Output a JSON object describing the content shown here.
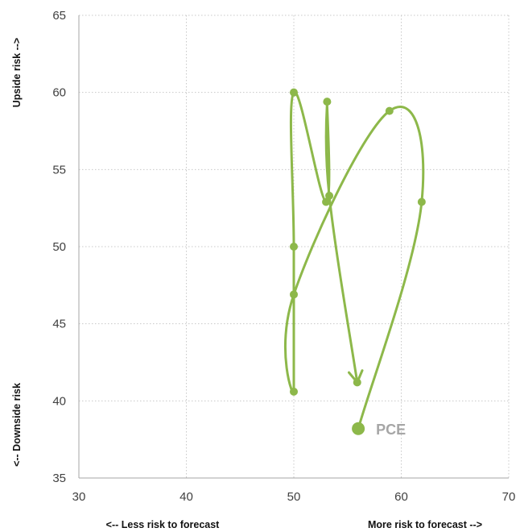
{
  "chart_data": {
    "type": "line",
    "xlim": [
      30,
      70
    ],
    "ylim": [
      35,
      65
    ],
    "x_ticks": [
      30,
      40,
      50,
      60,
      70
    ],
    "y_ticks": [
      35,
      40,
      45,
      50,
      55,
      60,
      65
    ],
    "grid": "dotted",
    "annotations": {
      "x_left": "<-- Less risk to forecast",
      "x_right": "More risk to forecast -->",
      "y_top": "Upside risk -->",
      "y_bottom": "<-- Downside risk"
    },
    "series": [
      {
        "name": "PCE",
        "color": "#8db84a",
        "label_color": "#a6a6a6",
        "points": [
          {
            "x": 56,
            "y": 38.2
          },
          {
            "x": 61.9,
            "y": 52.9
          },
          {
            "x": 58.9,
            "y": 58.8
          },
          {
            "x": 50.0,
            "y": 46.9
          },
          {
            "x": 50.0,
            "y": 40.6
          },
          {
            "x": 50.0,
            "y": 50.0
          },
          {
            "x": 50.0,
            "y": 60.0
          },
          {
            "x": 53.0,
            "y": 52.9
          },
          {
            "x": 53.1,
            "y": 59.4
          },
          {
            "x": 53.3,
            "y": 53.3
          },
          {
            "x": 55.9,
            "y": 41.2
          }
        ]
      }
    ]
  }
}
